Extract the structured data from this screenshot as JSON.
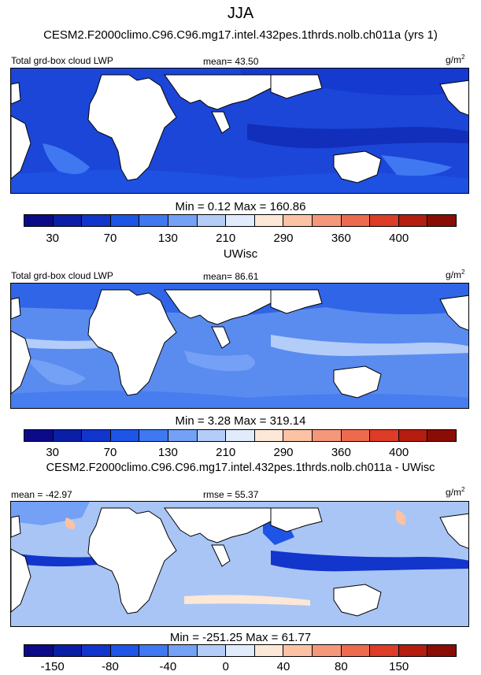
{
  "figure": {
    "title": "JJA"
  },
  "panels": [
    {
      "header": "CESM2.F2000climo.C96.C96.mg17.intel.432pes.1thrds.nolb.ch011a (yrs 1)",
      "left_label": "Total grd-box cloud LWP",
      "center_label": "mean=  43.50",
      "units_base": "g/m",
      "units_exp": "2",
      "minmax": "Min =   0.12 Max = 160.86",
      "background": "#1c46d8",
      "colorbar_ticks": [
        "30",
        "70",
        "130",
        "210",
        "290",
        "360",
        "400"
      ]
    },
    {
      "header": "UWisc",
      "left_label": "Total grd-box cloud LWP",
      "center_label": "mean=  86.61",
      "units_base": "g/m",
      "units_exp": "2",
      "minmax": "Min =   3.28 Max = 319.14",
      "background": "#5a8bef",
      "colorbar_ticks": [
        "30",
        "70",
        "130",
        "210",
        "290",
        "360",
        "400"
      ]
    },
    {
      "header": "CESM2.F2000climo.C96.C96.mg17.intel.432pes.1thrds.nolb.ch011a - UWisc",
      "left_label": "mean = -42.97",
      "center_label": "rmse =  55.37",
      "units_base": "g/m",
      "units_exp": "2",
      "minmax": "Min = -251.25 Max =  61.77",
      "background": "#a9c5f5",
      "colorbar_ticks": [
        "-150",
        "-80",
        "-40",
        "0",
        "40",
        "80",
        "150"
      ]
    }
  ],
  "chart_data": [
    {
      "type": "heatmap",
      "title": "CESM2.F2000climo.C96.C96.mg17.intel.432pes.1thrds.nolb.ch011a (yrs 1)",
      "variable": "Total grd-box cloud LWP",
      "units": "g/m2",
      "mean": 43.5,
      "min": 0.12,
      "max": 160.86,
      "colorbar_ticks": [
        30,
        70,
        130,
        210,
        290,
        360,
        400
      ],
      "colors": [
        "#0b0b8a",
        "#0a1fa6",
        "#1235cc",
        "#1f55e6",
        "#3f78f0",
        "#74a0f5",
        "#b3cdf8",
        "#e0ebfb",
        "#fde7d6",
        "#fbc2a3",
        "#f5977a",
        "#ee6a4f",
        "#dc3c28",
        "#b41d10",
        "#8a0d05"
      ]
    },
    {
      "type": "heatmap",
      "title": "UWisc",
      "variable": "Total grd-box cloud LWP",
      "units": "g/m2",
      "mean": 86.61,
      "min": 3.28,
      "max": 319.14,
      "colorbar_ticks": [
        30,
        70,
        130,
        210,
        290,
        360,
        400
      ],
      "colors": [
        "#0b0b8a",
        "#0a1fa6",
        "#1235cc",
        "#1f55e6",
        "#3f78f0",
        "#74a0f5",
        "#b3cdf8",
        "#e0ebfb",
        "#fde7d6",
        "#fbc2a3",
        "#f5977a",
        "#ee6a4f",
        "#dc3c28",
        "#b41d10",
        "#8a0d05"
      ]
    },
    {
      "type": "heatmap",
      "title": "CESM2.F2000climo.C96.C96.mg17.intel.432pes.1thrds.nolb.ch011a - UWisc",
      "variable": "Total grd-box cloud LWP",
      "units": "g/m2",
      "mean": -42.97,
      "rmse": 55.37,
      "min": -251.25,
      "max": 61.77,
      "colorbar_ticks": [
        -150,
        -80,
        -40,
        0,
        40,
        80,
        150
      ],
      "colors": [
        "#0b0b8a",
        "#0a1fa6",
        "#1235cc",
        "#1f55e6",
        "#3f78f0",
        "#74a0f5",
        "#b3cdf8",
        "#e0ebfb",
        "#fde7d6",
        "#fbc2a3",
        "#f5977a",
        "#ee6a4f",
        "#dc3c28",
        "#b41d10",
        "#8a0d05"
      ]
    }
  ]
}
